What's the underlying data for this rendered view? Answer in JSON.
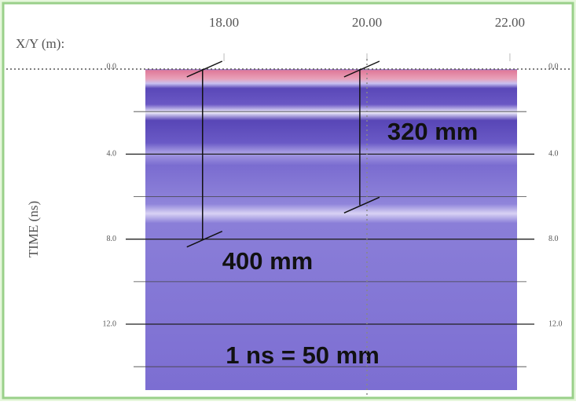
{
  "chart_data": {
    "type": "radargram",
    "x_label": "X/Y (m):",
    "y_label": "TIME (ns)",
    "xlim": [
      16.9,
      22.1
    ],
    "xticks": [
      {
        "value": 18,
        "label": "18.00"
      },
      {
        "value": 20,
        "label": "20.00"
      },
      {
        "value": 22,
        "label": "22.00"
      }
    ],
    "ylim": [
      0,
      15.1
    ],
    "yticks": [
      {
        "value": 0,
        "label": "0.0"
      },
      {
        "value": 4,
        "label": "4.0"
      },
      {
        "value": 8,
        "label": "8.0"
      },
      {
        "value": 12,
        "label": "12.0"
      }
    ],
    "minor_yticks": [
      2,
      6,
      10,
      14
    ],
    "grid": true,
    "measurements": [
      {
        "label": "400 mm",
        "x": 17.7,
        "time": [
          0,
          8
        ]
      },
      {
        "label": "320 mm",
        "x": 19.9,
        "time": [
          0,
          6.4
        ]
      }
    ],
    "note": "1 ns = 50 mm"
  }
}
